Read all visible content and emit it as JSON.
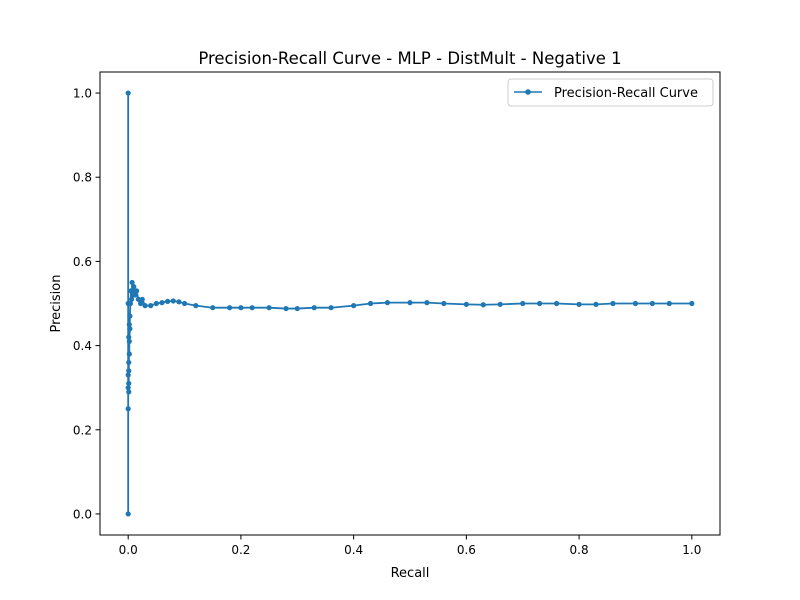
{
  "chart_data": {
    "type": "line",
    "title": "Precision-Recall Curve - MLP - DistMult - Negative 1",
    "xlabel": "Recall",
    "ylabel": "Precision",
    "xlim": [
      -0.05,
      1.05
    ],
    "ylim": [
      -0.05,
      1.05
    ],
    "xticks": [
      0.0,
      0.2,
      0.4,
      0.6,
      0.8,
      1.0
    ],
    "xtick_labels": [
      "0.0",
      "0.2",
      "0.4",
      "0.6",
      "0.8",
      "1.0"
    ],
    "yticks": [
      0.0,
      0.2,
      0.4,
      0.6,
      0.8,
      1.0
    ],
    "ytick_labels": [
      "0.0",
      "0.2",
      "0.4",
      "0.6",
      "0.8",
      "1.0"
    ],
    "grid": false,
    "legend_position": "top-right",
    "series": [
      {
        "name": "Precision-Recall Curve",
        "color": "#1f77b4",
        "marker": "circle",
        "points": [
          [
            0.0,
            0.0
          ],
          [
            0.0,
            1.0
          ],
          [
            0.0,
            0.5
          ],
          [
            0.0,
            0.33
          ],
          [
            0.0,
            0.25
          ],
          [
            0.0,
            0.3
          ],
          [
            0.001,
            0.29
          ],
          [
            0.001,
            0.36
          ],
          [
            0.001,
            0.31
          ],
          [
            0.001,
            0.42
          ],
          [
            0.001,
            0.34
          ],
          [
            0.002,
            0.45
          ],
          [
            0.002,
            0.38
          ],
          [
            0.002,
            0.41
          ],
          [
            0.003,
            0.44
          ],
          [
            0.003,
            0.47
          ],
          [
            0.004,
            0.5
          ],
          [
            0.005,
            0.53
          ],
          [
            0.006,
            0.51
          ],
          [
            0.007,
            0.55
          ],
          [
            0.008,
            0.52
          ],
          [
            0.01,
            0.54
          ],
          [
            0.012,
            0.52
          ],
          [
            0.015,
            0.53
          ],
          [
            0.018,
            0.51
          ],
          [
            0.022,
            0.5
          ],
          [
            0.025,
            0.51
          ],
          [
            0.03,
            0.495
          ],
          [
            0.04,
            0.495
          ],
          [
            0.05,
            0.5
          ],
          [
            0.06,
            0.502
          ],
          [
            0.07,
            0.505
          ],
          [
            0.08,
            0.506
          ],
          [
            0.09,
            0.504
          ],
          [
            0.1,
            0.5
          ],
          [
            0.12,
            0.495
          ],
          [
            0.15,
            0.49
          ],
          [
            0.18,
            0.49
          ],
          [
            0.2,
            0.49
          ],
          [
            0.22,
            0.49
          ],
          [
            0.25,
            0.49
          ],
          [
            0.28,
            0.488
          ],
          [
            0.3,
            0.488
          ],
          [
            0.33,
            0.49
          ],
          [
            0.36,
            0.49
          ],
          [
            0.4,
            0.495
          ],
          [
            0.43,
            0.5
          ],
          [
            0.46,
            0.502
          ],
          [
            0.5,
            0.502
          ],
          [
            0.53,
            0.502
          ],
          [
            0.56,
            0.5
          ],
          [
            0.6,
            0.498
          ],
          [
            0.63,
            0.497
          ],
          [
            0.66,
            0.498
          ],
          [
            0.7,
            0.5
          ],
          [
            0.73,
            0.5
          ],
          [
            0.76,
            0.5
          ],
          [
            0.8,
            0.498
          ],
          [
            0.83,
            0.498
          ],
          [
            0.86,
            0.5
          ],
          [
            0.9,
            0.5
          ],
          [
            0.93,
            0.5
          ],
          [
            0.96,
            0.5
          ],
          [
            1.0,
            0.5
          ]
        ]
      }
    ]
  }
}
